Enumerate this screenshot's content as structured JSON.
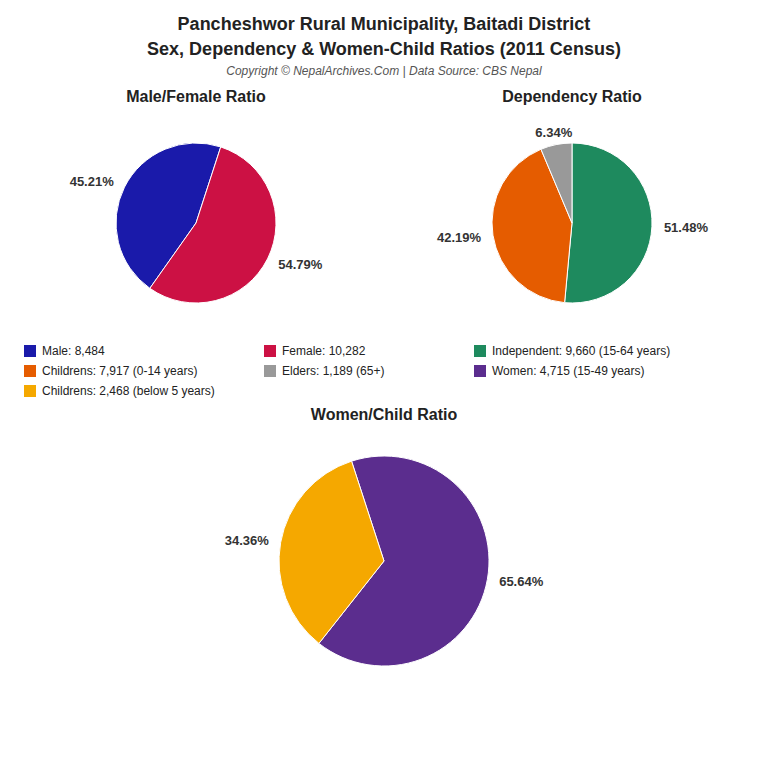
{
  "title": "Pancheshwor Rural Municipality, Baitadi District",
  "subtitle": "Sex, Dependency & Women-Child Ratios (2011 Census)",
  "annotations": [
    "Copyright © NepalArchives.Com | Data Source: CBS Nepal"
  ],
  "legend": "center",
  "chart_data": [
    {
      "type": "pie",
      "title": "Male/Female Ratio",
      "categories": [
        "Male: 8,484",
        "Female: 10,282"
      ],
      "values": [
        45.21,
        54.79
      ],
      "value_labels": [
        "45.21%",
        "54.79%"
      ],
      "colors": [
        "#1a1aaa",
        "#cc1144"
      ],
      "data_labels": true
    },
    {
      "type": "pie",
      "title": "Dependency Ratio",
      "categories": [
        "Independent: 9,660 (15-64 years)",
        "Childrens: 7,917 (0-14 years)",
        "Elders: 1,189 (65+)"
      ],
      "values": [
        51.48,
        42.19,
        6.34
      ],
      "value_labels": [
        "51.48%",
        "42.19%",
        "6.34%"
      ],
      "colors": [
        "#1e8a5e",
        "#e55c00",
        "#999999"
      ],
      "data_labels": true
    },
    {
      "type": "pie",
      "title": "Women/Child Ratio",
      "categories": [
        "Women: 4,715 (15-49 years)",
        "Childrens: 2,468 (below 5 years)"
      ],
      "values": [
        65.64,
        34.36
      ],
      "value_labels": [
        "65.64%",
        "34.36%"
      ],
      "colors": [
        "#5b2d8e",
        "#f5a800"
      ],
      "data_labels": true
    }
  ]
}
